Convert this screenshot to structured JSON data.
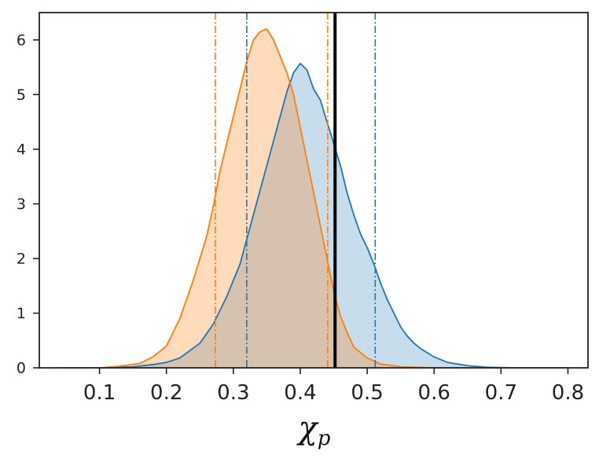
{
  "chart_data": {
    "type": "area",
    "title": "",
    "xlabel": "χ",
    "xlabel_subscript": "p",
    "ylabel": "",
    "xlim": [
      0.01,
      0.83
    ],
    "ylim": [
      0,
      6.5
    ],
    "grid": false,
    "legend": "none",
    "xticks": [
      0.1,
      0.2,
      0.3,
      0.4,
      0.5,
      0.6,
      0.7,
      0.8
    ],
    "xtick_labels": [
      "0.1",
      "0.2",
      "0.3",
      "0.4",
      "0.5",
      "0.6",
      "0.7",
      "0.8"
    ],
    "yticks": [
      0,
      1,
      2,
      3,
      4,
      5,
      6
    ],
    "ytick_labels": [
      "0",
      "1",
      "2",
      "3",
      "4",
      "5",
      "6"
    ],
    "series": [
      {
        "color": "#1f77b4",
        "fill_color": "#1f77b4",
        "fill_opacity": 0.25,
        "x": [
          0.04,
          0.1,
          0.15,
          0.18,
          0.2,
          0.22,
          0.25,
          0.27,
          0.29,
          0.31,
          0.33,
          0.35,
          0.37,
          0.38,
          0.39,
          0.4,
          0.41,
          0.42,
          0.43,
          0.44,
          0.45,
          0.46,
          0.47,
          0.48,
          0.49,
          0.5,
          0.51,
          0.52,
          0.53,
          0.54,
          0.55,
          0.56,
          0.57,
          0.58,
          0.6,
          0.62,
          0.65,
          0.68,
          0.72,
          0.8
        ],
        "y": [
          0.0,
          0.0,
          0.02,
          0.06,
          0.1,
          0.18,
          0.45,
          0.8,
          1.3,
          1.9,
          2.8,
          3.7,
          4.6,
          5.05,
          5.4,
          5.57,
          5.45,
          5.1,
          4.9,
          4.5,
          4.1,
          3.7,
          3.2,
          2.8,
          2.45,
          2.2,
          1.9,
          1.55,
          1.25,
          1.0,
          0.75,
          0.58,
          0.45,
          0.35,
          0.2,
          0.1,
          0.04,
          0.01,
          0.0,
          0.0
        ]
      },
      {
        "color": "#ff7f0e",
        "fill_color": "#ff7f0e",
        "fill_opacity": 0.28,
        "x": [
          0.05,
          0.1,
          0.13,
          0.16,
          0.18,
          0.2,
          0.22,
          0.24,
          0.26,
          0.27,
          0.28,
          0.29,
          0.3,
          0.31,
          0.32,
          0.33,
          0.34,
          0.35,
          0.36,
          0.37,
          0.38,
          0.39,
          0.4,
          0.41,
          0.42,
          0.43,
          0.44,
          0.45,
          0.46,
          0.47,
          0.48,
          0.5,
          0.52,
          0.55,
          0.6,
          0.65
        ],
        "y": [
          0.0,
          0.0,
          0.03,
          0.08,
          0.2,
          0.4,
          0.9,
          1.6,
          2.4,
          2.95,
          3.6,
          4.1,
          4.6,
          5.1,
          5.6,
          6.0,
          6.15,
          6.2,
          6.0,
          5.7,
          5.4,
          5.0,
          4.4,
          3.8,
          3.2,
          2.6,
          2.0,
          1.4,
          0.95,
          0.65,
          0.38,
          0.18,
          0.07,
          0.02,
          0.0,
          0.0
        ]
      }
    ],
    "vlines": [
      {
        "x": 0.273,
        "color": "#ff7f0e",
        "style": "dashdot"
      },
      {
        "x": 0.32,
        "color": "#1f77b4",
        "style": "dashdot"
      },
      {
        "x": 0.441,
        "color": "#ff7f0e",
        "style": "dashdot"
      },
      {
        "x": 0.452,
        "color": "#000000",
        "style": "solid"
      },
      {
        "x": 0.512,
        "color": "#1f77b4",
        "style": "dashdot"
      }
    ]
  }
}
